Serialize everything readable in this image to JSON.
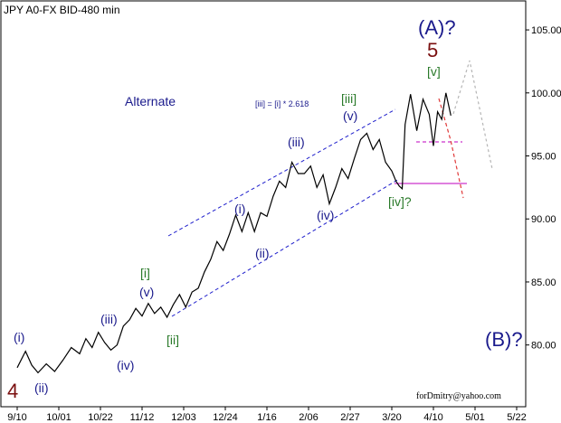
{
  "window": {
    "title": "JPY A0-FX BID-480 min"
  },
  "chart_data": {
    "type": "line",
    "title": "JPY A0-FX BID-480 min",
    "xlabel": "",
    "ylabel": "",
    "ylim": [
      75.1,
      107.3
    ],
    "y_ticks": [
      {
        "value": 80,
        "label": "80.00"
      },
      {
        "value": 85,
        "label": "85.00"
      },
      {
        "value": 90,
        "label": "90.00"
      },
      {
        "value": 95,
        "label": "95.00"
      },
      {
        "value": 100,
        "label": "100.00"
      },
      {
        "value": 105,
        "label": "105.00"
      }
    ],
    "x_ticks": [
      {
        "index": 0,
        "label": "9/10"
      },
      {
        "index": 1,
        "label": "10/01"
      },
      {
        "index": 2,
        "label": "10/22"
      },
      {
        "index": 3,
        "label": "11/12"
      },
      {
        "index": 4,
        "label": "12/03"
      },
      {
        "index": 5,
        "label": "12/24"
      },
      {
        "index": 6,
        "label": "1/16"
      },
      {
        "index": 7,
        "label": "2/06"
      },
      {
        "index": 8,
        "label": "2/27"
      },
      {
        "index": 9,
        "label": "3/20"
      },
      {
        "index": 10,
        "label": "4/10"
      },
      {
        "index": 11,
        "label": "5/01"
      },
      {
        "index": 12,
        "label": "5/22"
      }
    ],
    "series": [
      {
        "x": [
          0.0,
          0.2,
          0.35,
          0.5,
          0.7,
          0.9,
          1.1,
          1.3,
          1.5,
          1.65,
          1.8,
          1.95,
          2.1,
          2.25,
          2.4,
          2.55,
          2.7,
          2.85,
          3.0,
          3.15,
          3.3,
          3.45,
          3.6,
          3.75,
          3.9,
          4.05,
          4.2,
          4.35,
          4.5,
          4.65,
          4.8,
          4.95,
          5.1,
          5.25,
          5.4,
          5.55,
          5.7,
          5.85,
          6.0,
          6.15,
          6.3,
          6.45,
          6.6,
          6.75,
          6.9,
          7.05,
          7.2,
          7.35,
          7.5,
          7.65,
          7.8,
          7.95,
          8.1,
          8.25,
          8.4,
          8.55,
          8.7,
          8.85,
          9.0,
          9.1,
          9.18,
          9.25,
          9.32,
          9.45,
          9.6,
          9.75,
          9.9,
          10.0,
          10.1,
          10.2,
          10.3,
          10.42
        ],
        "values": [
          78.2,
          79.5,
          78.4,
          77.8,
          78.5,
          77.9,
          78.8,
          79.8,
          79.3,
          80.5,
          79.8,
          81.0,
          80.2,
          79.6,
          80.0,
          81.5,
          82.0,
          82.9,
          82.3,
          83.3,
          82.5,
          83.0,
          82.2,
          83.2,
          84.0,
          83.0,
          84.2,
          84.5,
          85.8,
          86.8,
          88.2,
          87.5,
          88.8,
          90.3,
          89.0,
          90.5,
          89.0,
          90.5,
          90.2,
          91.8,
          93.0,
          92.5,
          94.5,
          93.6,
          93.6,
          94.2,
          92.5,
          93.5,
          91.2,
          92.5,
          94.0,
          93.2,
          94.8,
          96.3,
          96.8,
          95.5,
          96.3,
          94.5,
          93.8,
          93.0,
          92.6,
          92.4,
          97.5,
          99.9,
          97.0,
          99.5,
          98.3,
          95.8,
          98.5,
          97.9,
          100.0,
          98.2
        ]
      }
    ],
    "annotations": {
      "wave_4": "4",
      "wave_i": "(i)",
      "wave_ii": "(ii)",
      "wave_iii_low": "(iii)",
      "wave_iv_low": "(iv)",
      "wave_v_low": "(v)",
      "wave_i_bracket": "[i]",
      "wave_ii_bracket": "[ii]",
      "wave_i_mid": "(i)",
      "wave_ii_mid": "(ii)",
      "wave_iii_mid": "(iii)",
      "wave_iv_mid": "(iv)",
      "wave_v_mid": "(v)",
      "wave_iii_bracket": "[iii]",
      "wave_iv_bracket": "[iv]?",
      "wave_v_bracket": "[v]",
      "wave_5": "5",
      "wave_A": "(A)?",
      "wave_B": "(B)?",
      "alternate": "Alternate",
      "ratio_note": "[iii] = [i] * 2.618",
      "footer": "forDmitry@yahoo.com"
    },
    "colors": {
      "price": "#000000",
      "channel": "#1f1fcc",
      "wave_navy": "#1a1a8c",
      "wave_green": "#2a7a2a",
      "wave_red": "#7a0f0f",
      "target_line": "#cc33cc",
      "projection_red": "#e03a3a",
      "projection_grey": "#b5b5b5"
    }
  }
}
